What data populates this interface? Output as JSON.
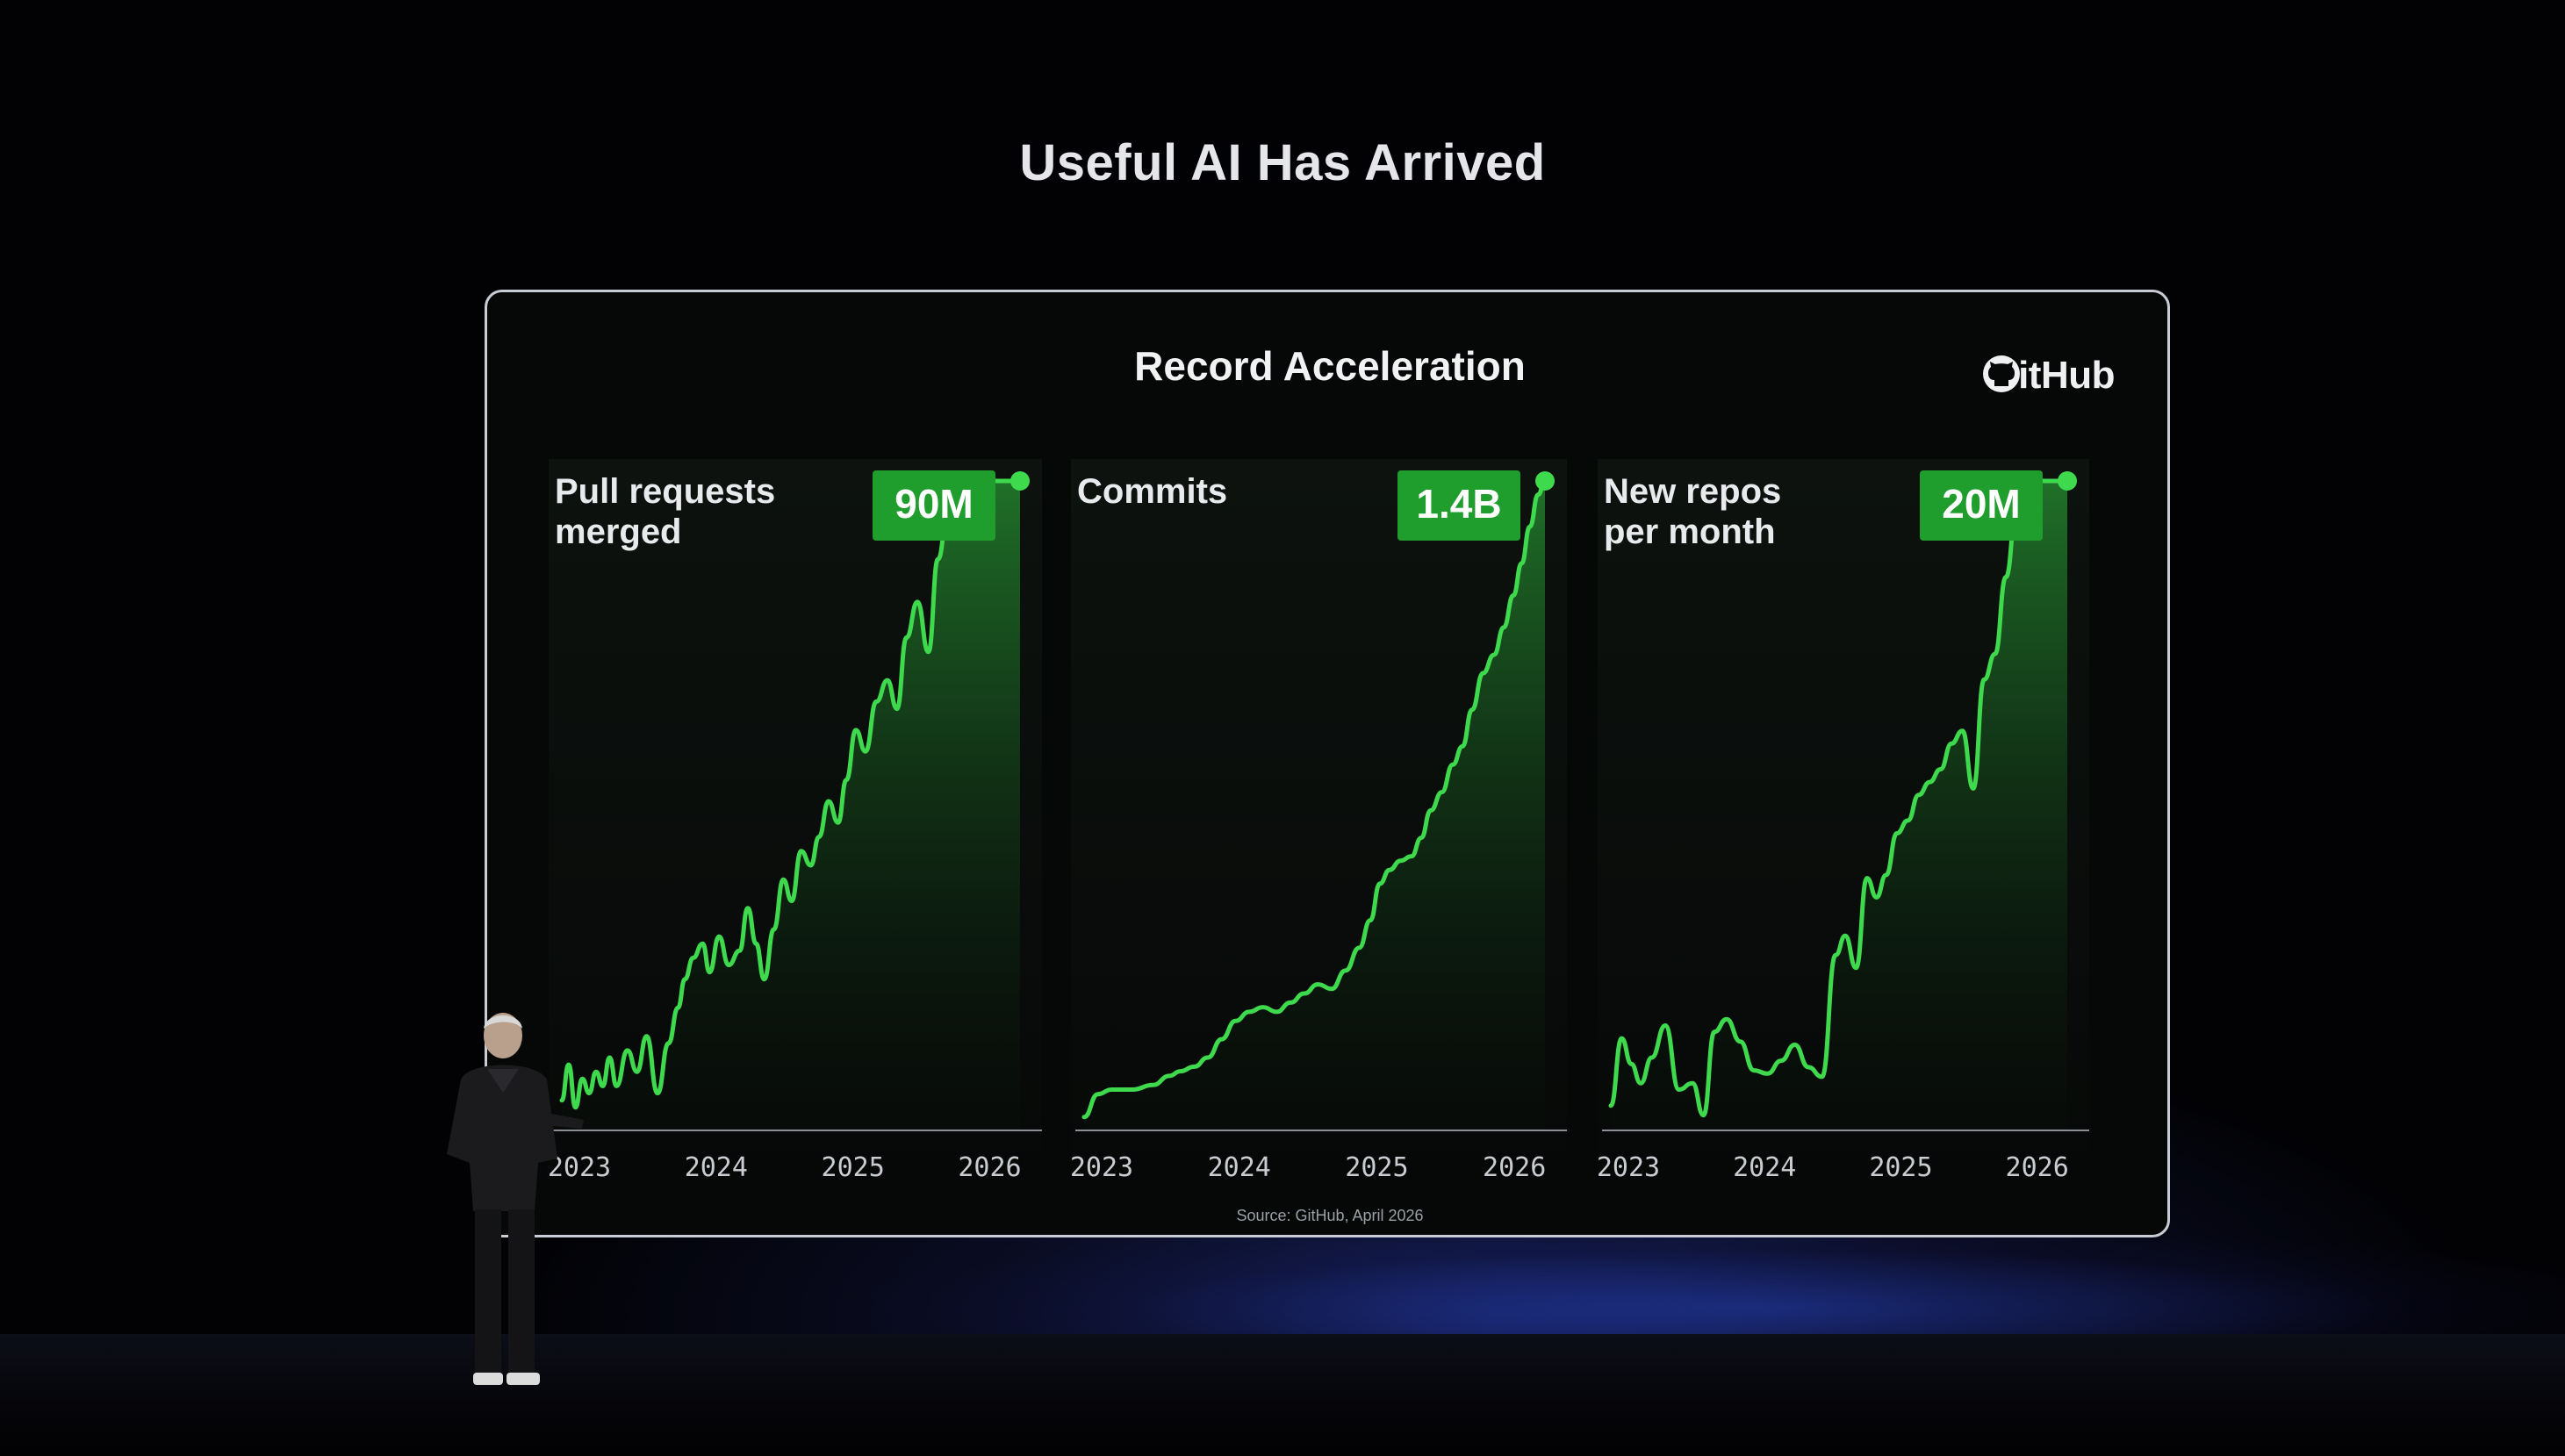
{
  "slide": {
    "headline": "Useful AI Has Arrived",
    "source": "Source: GitHub, April 2026",
    "logo_text": "GitHub"
  },
  "colors": {
    "accent_green": "#3fd94e",
    "badge_green": "#1f9e2e",
    "background": "#010102"
  },
  "chart_data": [
    {
      "type": "area",
      "title": "Record Acceleration",
      "panel_title": "Pull requests merged",
      "panel_title_lines": [
        "Pull requests",
        "merged"
      ],
      "badge": "90M",
      "xlabel": "",
      "ylabel": "",
      "x_ticks": [
        "2023",
        "2024",
        "2025",
        "2026"
      ],
      "xlim": [
        2023.0,
        2026.35
      ],
      "ylim": [
        0,
        90
      ],
      "x": [
        2023.0,
        2023.05,
        2023.1,
        2023.15,
        2023.2,
        2023.25,
        2023.3,
        2023.35,
        2023.4,
        2023.48,
        2023.55,
        2023.62,
        2023.7,
        2023.78,
        2023.85,
        2023.9,
        2023.96,
        2024.03,
        2024.08,
        2024.15,
        2024.22,
        2024.3,
        2024.36,
        2024.42,
        2024.48,
        2024.55,
        2024.62,
        2024.68,
        2024.75,
        2024.82,
        2024.88,
        2024.95,
        2025.02,
        2025.08,
        2025.15,
        2025.22,
        2025.3,
        2025.38,
        2025.45,
        2025.52,
        2025.6,
        2025.68,
        2025.75,
        2025.82,
        2025.9,
        2025.98,
        2026.05,
        2026.12,
        2026.18,
        2026.24,
        2026.3,
        2026.35
      ],
      "y": [
        3,
        8,
        2,
        6,
        4,
        7,
        5,
        9,
        5,
        10,
        7,
        12,
        4,
        11,
        16,
        20,
        23,
        25,
        21,
        26,
        22,
        24,
        30,
        25,
        20,
        27,
        34,
        31,
        38,
        36,
        40,
        45,
        42,
        48,
        55,
        52,
        59,
        62,
        58,
        68,
        73,
        66,
        79,
        85,
        88,
        90,
        90,
        90,
        90,
        90,
        90,
        90
      ]
    },
    {
      "type": "area",
      "panel_title": "Commits",
      "panel_title_lines": [
        "Commits"
      ],
      "badge": "1.4B",
      "xlabel": "",
      "ylabel": "",
      "x_ticks": [
        "2023",
        "2024",
        "2025",
        "2026"
      ],
      "xlim": [
        2023.0,
        2026.35
      ],
      "ylim": [
        0,
        1.4
      ],
      "x": [
        2023.0,
        2023.1,
        2023.2,
        2023.35,
        2023.5,
        2023.62,
        2023.7,
        2023.8,
        2023.9,
        2024.0,
        2024.1,
        2024.2,
        2024.3,
        2024.4,
        2024.5,
        2024.6,
        2024.7,
        2024.8,
        2024.9,
        2025.0,
        2025.08,
        2025.15,
        2025.22,
        2025.3,
        2025.38,
        2025.45,
        2025.52,
        2025.6,
        2025.68,
        2025.75,
        2025.82,
        2025.9,
        2025.98,
        2026.05,
        2026.12,
        2026.18,
        2026.24,
        2026.3,
        2026.35
      ],
      "y": [
        0.01,
        0.06,
        0.07,
        0.07,
        0.08,
        0.1,
        0.11,
        0.12,
        0.14,
        0.18,
        0.22,
        0.24,
        0.25,
        0.24,
        0.26,
        0.28,
        0.3,
        0.29,
        0.33,
        0.38,
        0.44,
        0.52,
        0.55,
        0.57,
        0.58,
        0.62,
        0.68,
        0.72,
        0.78,
        0.82,
        0.9,
        0.98,
        1.02,
        1.08,
        1.15,
        1.22,
        1.3,
        1.37,
        1.4
      ]
    },
    {
      "type": "area",
      "panel_title": "New repos per month",
      "panel_title_lines": [
        "New repos",
        "per month"
      ],
      "badge": "20M",
      "xlabel": "",
      "ylabel": "",
      "x_ticks": [
        "2023",
        "2024",
        "2025",
        "2026"
      ],
      "xlim": [
        2023.0,
        2026.35
      ],
      "ylim": [
        0,
        20
      ],
      "x": [
        2023.0,
        2023.08,
        2023.15,
        2023.22,
        2023.3,
        2023.4,
        2023.5,
        2023.6,
        2023.68,
        2023.76,
        2023.85,
        2023.95,
        2024.05,
        2024.15,
        2024.25,
        2024.35,
        2024.45,
        2024.55,
        2024.65,
        2024.72,
        2024.8,
        2024.88,
        2024.95,
        2025.02,
        2025.1,
        2025.18,
        2025.26,
        2025.34,
        2025.42,
        2025.5,
        2025.58,
        2025.66,
        2025.74,
        2025.82,
        2025.9,
        2025.98,
        2026.05,
        2026.12,
        2026.18,
        2026.24,
        2026.3,
        2026.35
      ],
      "y": [
        0.5,
        2.6,
        1.8,
        1.2,
        2.0,
        3.0,
        1.0,
        1.2,
        0.2,
        2.8,
        3.2,
        2.5,
        1.6,
        1.5,
        1.9,
        2.4,
        1.7,
        1.4,
        5.2,
        5.8,
        4.8,
        7.6,
        7.0,
        7.7,
        9.0,
        9.4,
        10.2,
        10.6,
        11.0,
        11.8,
        12.2,
        10.4,
        13.8,
        14.6,
        17.0,
        19.2,
        20.0,
        20.0,
        20.0,
        20.0,
        20.0,
        20.0
      ]
    }
  ]
}
